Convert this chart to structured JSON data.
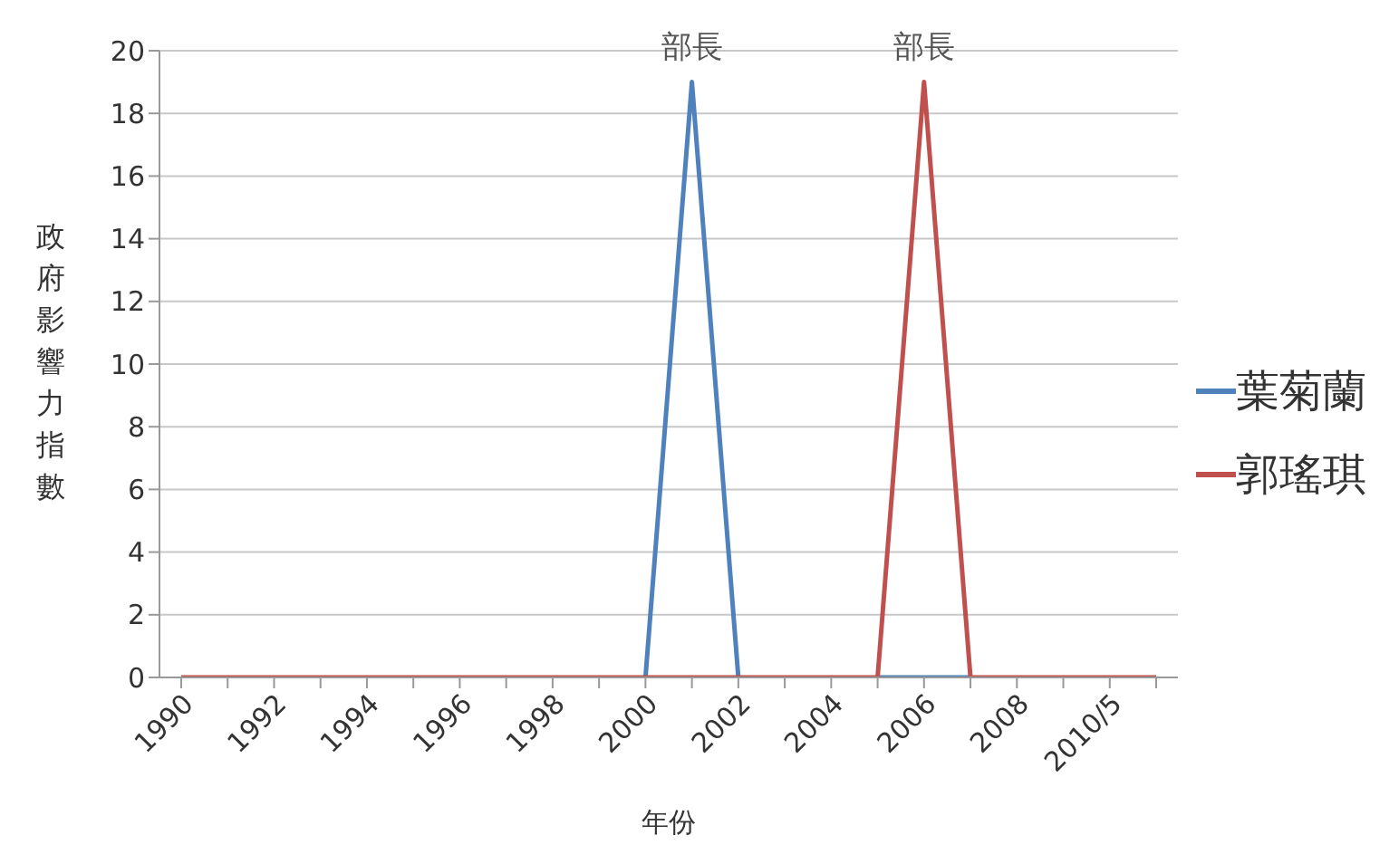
{
  "chart_data": {
    "type": "line",
    "xlabel": "年份",
    "ylabel": "政府影響力指數",
    "categories": [
      "1990",
      null,
      "1992",
      null,
      "1994",
      null,
      "1996",
      null,
      "1998",
      null,
      "2000",
      null,
      "2002",
      null,
      "2004",
      null,
      "2006",
      null,
      "2008",
      null,
      "2010/5",
      null
    ],
    "series": [
      {
        "name": "葉菊蘭",
        "color": "#4f81bd",
        "values": [
          null,
          null,
          null,
          null,
          null,
          null,
          null,
          null,
          null,
          null,
          0,
          19,
          0,
          null,
          null,
          0,
          0,
          0,
          null,
          null,
          null,
          null
        ]
      },
      {
        "name": "郭瑤琪",
        "color": "#c0504d",
        "values": [
          0,
          0,
          0,
          0,
          0,
          0,
          0,
          0,
          0,
          0,
          0,
          0,
          0,
          0,
          0,
          0,
          19,
          0,
          0,
          0,
          0,
          0
        ]
      }
    ],
    "annotations": [
      "部長",
      "部長"
    ],
    "ylim": [
      0,
      20
    ],
    "yticks": [
      0,
      2,
      4,
      6,
      8,
      10,
      12,
      14,
      16,
      18,
      20
    ],
    "grid": "y",
    "legend": "right",
    "marker": "none"
  }
}
